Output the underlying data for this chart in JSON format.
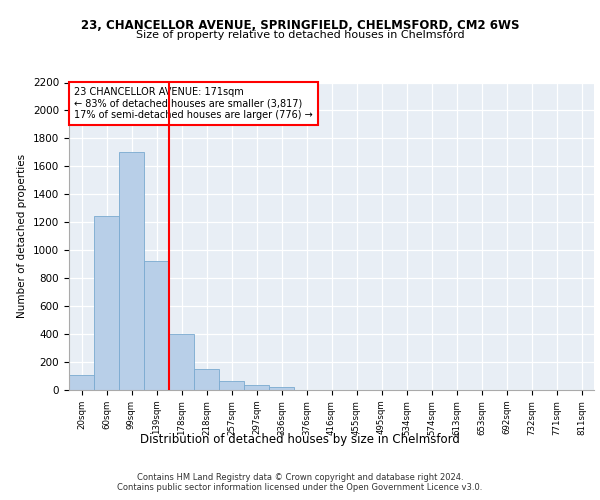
{
  "title1": "23, CHANCELLOR AVENUE, SPRINGFIELD, CHELMSFORD, CM2 6WS",
  "title2": "Size of property relative to detached houses in Chelmsford",
  "xlabel": "Distribution of detached houses by size in Chelmsford",
  "ylabel": "Number of detached properties",
  "categories": [
    "20sqm",
    "60sqm",
    "99sqm",
    "139sqm",
    "178sqm",
    "218sqm",
    "257sqm",
    "297sqm",
    "336sqm",
    "376sqm",
    "416sqm",
    "455sqm",
    "495sqm",
    "534sqm",
    "574sqm",
    "613sqm",
    "653sqm",
    "692sqm",
    "732sqm",
    "771sqm",
    "811sqm"
  ],
  "values": [
    110,
    1245,
    1700,
    920,
    400,
    150,
    65,
    35,
    22,
    0,
    0,
    0,
    0,
    0,
    0,
    0,
    0,
    0,
    0,
    0,
    0
  ],
  "bar_color": "#b8cfe8",
  "bar_edge_color": "#7aaad0",
  "red_line_x": 3.5,
  "annotation_text": "23 CHANCELLOR AVENUE: 171sqm\n← 83% of detached houses are smaller (3,817)\n17% of semi-detached houses are larger (776) →",
  "ylim": [
    0,
    2200
  ],
  "yticks": [
    0,
    200,
    400,
    600,
    800,
    1000,
    1200,
    1400,
    1600,
    1800,
    2000,
    2200
  ],
  "background_color": "#e8eef5",
  "footer_line1": "Contains HM Land Registry data © Crown copyright and database right 2024.",
  "footer_line2": "Contains public sector information licensed under the Open Government Licence v3.0."
}
